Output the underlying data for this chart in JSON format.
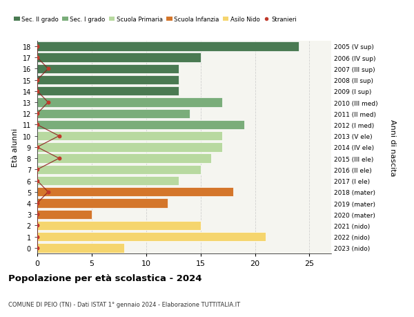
{
  "ages": [
    18,
    17,
    16,
    15,
    14,
    13,
    12,
    11,
    10,
    9,
    8,
    7,
    6,
    5,
    4,
    3,
    2,
    1,
    0
  ],
  "values": [
    24,
    15,
    13,
    13,
    13,
    17,
    14,
    19,
    17,
    17,
    16,
    15,
    13,
    18,
    12,
    5,
    15,
    21,
    8
  ],
  "bar_colors": [
    "#4a7a52",
    "#4a7a52",
    "#4a7a52",
    "#4a7a52",
    "#4a7a52",
    "#7aad7a",
    "#7aad7a",
    "#7aad7a",
    "#b8d9a0",
    "#b8d9a0",
    "#b8d9a0",
    "#b8d9a0",
    "#b8d9a0",
    "#d4762b",
    "#d4762b",
    "#d4762b",
    "#f5d56e",
    "#f5d56e",
    "#f5d56e"
  ],
  "right_labels": [
    "2005 (V sup)",
    "2006 (IV sup)",
    "2007 (III sup)",
    "2008 (II sup)",
    "2009 (I sup)",
    "2010 (III med)",
    "2011 (II med)",
    "2012 (I med)",
    "2013 (V ele)",
    "2014 (IV ele)",
    "2015 (III ele)",
    "2016 (II ele)",
    "2017 (I ele)",
    "2018 (mater)",
    "2019 (mater)",
    "2020 (mater)",
    "2021 (nido)",
    "2022 (nido)",
    "2023 (nido)"
  ],
  "stranieri_x": [
    0,
    0,
    1,
    0,
    0,
    1,
    0,
    0,
    2,
    0,
    2,
    0,
    0,
    1,
    0,
    0,
    0,
    0,
    0
  ],
  "legend_labels": [
    "Sec. II grado",
    "Sec. I grado",
    "Scuola Primaria",
    "Scuola Infanzia",
    "Asilo Nido",
    "Stranieri"
  ],
  "legend_colors": [
    "#4a7a52",
    "#7aad7a",
    "#b8d9a0",
    "#d4762b",
    "#f5d56e",
    "#c0392b"
  ],
  "title": "Popolazione per età scolastica - 2024",
  "subtitle": "COMUNE DI PEIO (TN) - Dati ISTAT 1° gennaio 2024 - Elaborazione TUTTITALIA.IT",
  "ylabel_left": "Età alunni",
  "ylabel_right": "Anni di nascita",
  "xlim": [
    0,
    27
  ],
  "ylim": [
    -0.5,
    18.5
  ],
  "xticks": [
    0,
    5,
    10,
    15,
    20,
    25
  ],
  "bg_color": "#f5f5f0",
  "grid_color": "#cccccc"
}
